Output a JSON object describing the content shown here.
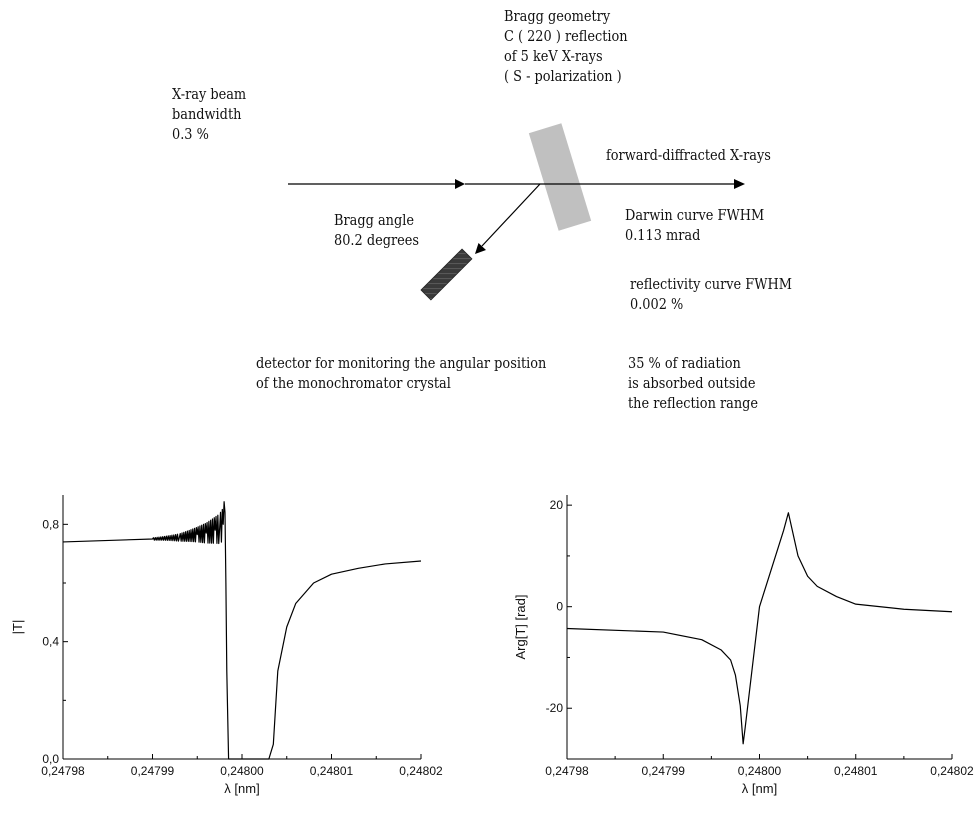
{
  "labels": {
    "bragg_geometry": [
      "Bragg geometry",
      "C ( 220 ) reflection",
      "of 5 keV X-rays",
      "( S - polarization )"
    ],
    "xray_beam": [
      "X-ray beam",
      "bandwidth",
      "0.3 %"
    ],
    "forward": [
      "forward-diffracted X-rays"
    ],
    "bragg_angle": [
      "Bragg angle",
      "80.2 degrees"
    ],
    "darwin": [
      "Darwin curve FWHM",
      "0.113 mrad"
    ],
    "reflectivity": [
      "reflectivity curve FWHM",
      "0.002 %"
    ],
    "detector": [
      "detector for monitoring the angular position",
      "of the monochromator crystal"
    ],
    "absorbed": [
      "35 % of radiation",
      "is absorbed outside",
      "the reflection range"
    ]
  },
  "colors": {
    "crystal": "#c0c0c0",
    "detector": "#3a3a3a",
    "line": "#000000"
  },
  "icons": {
    "crystal": "monochromator-crystal",
    "detector": "detector-block"
  },
  "chart_data": [
    {
      "type": "line",
      "xlabel": "λ [nm]",
      "ylabel": "|T|",
      "xlim": [
        0.24798,
        0.24802
      ],
      "ylim": [
        0.0,
        0.9
      ],
      "xticks": [
        0.24798,
        0.24799,
        0.248,
        0.24801,
        0.24802
      ],
      "xtick_labels": [
        "0,24798",
        "0,24799",
        "0,24800",
        "0,24801",
        "0,24802"
      ],
      "yticks": [
        0.0,
        0.4,
        0.8
      ],
      "ytick_labels": [
        "0,0",
        "0,4",
        "0,8"
      ],
      "series": [
        {
          "x": [
            0.24798,
            0.24799,
            0.247993,
            0.247995,
            0.247996,
            0.247997,
            0.2479975,
            0.2479979,
            0.2479981,
            0.2479982,
            0.2479983,
            0.2479984,
            0.2479985,
            0.248003,
            0.2480035,
            0.2480037,
            0.248004,
            0.248005,
            0.248006,
            0.248008,
            0.24801,
            0.248013,
            0.248016,
            0.24802
          ],
          "y": [
            0.74,
            0.75,
            0.755,
            0.765,
            0.77,
            0.78,
            0.785,
            0.8,
            0.84,
            0.6,
            0.3,
            0.15,
            0.0,
            0.0,
            0.05,
            0.15,
            0.3,
            0.45,
            0.53,
            0.6,
            0.63,
            0.65,
            0.665,
            0.675
          ]
        }
      ],
      "oscillation": {
        "start": 0.247988,
        "end": 0.2479982,
        "period": 2.1e-07,
        "amp_start": 0.003,
        "amp_end": 0.06
      }
    },
    {
      "type": "line",
      "xlabel": "λ [nm]",
      "ylabel": "Arg[T] [rad]",
      "xlim": [
        0.24798,
        0.24802
      ],
      "ylim": [
        -30,
        22
      ],
      "xticks": [
        0.24798,
        0.24799,
        0.248,
        0.24801,
        0.24802
      ],
      "xtick_labels": [
        "0,24798",
        "0,24799",
        "0,24800",
        "0,24801",
        "0,24802"
      ],
      "yticks": [
        -20,
        0,
        20
      ],
      "ytick_labels": [
        "-20",
        "0",
        "20"
      ],
      "series": [
        {
          "x": [
            0.24798,
            0.24799,
            0.247994,
            0.247996,
            0.247997,
            0.2479975,
            0.247998,
            0.2479983,
            0.2479985,
            0.248,
            0.2480025,
            0.248003,
            0.248004,
            0.248005,
            0.248006,
            0.248008,
            0.24801,
            0.248015,
            0.24802
          ],
          "y": [
            -4.3,
            -5.0,
            -6.5,
            -8.5,
            -10.5,
            -13.5,
            -19.5,
            -27.0,
            -24.0,
            0.0,
            15.0,
            18.5,
            10.0,
            6.0,
            4.0,
            2.0,
            0.5,
            -0.5,
            -1.0
          ]
        }
      ]
    }
  ]
}
